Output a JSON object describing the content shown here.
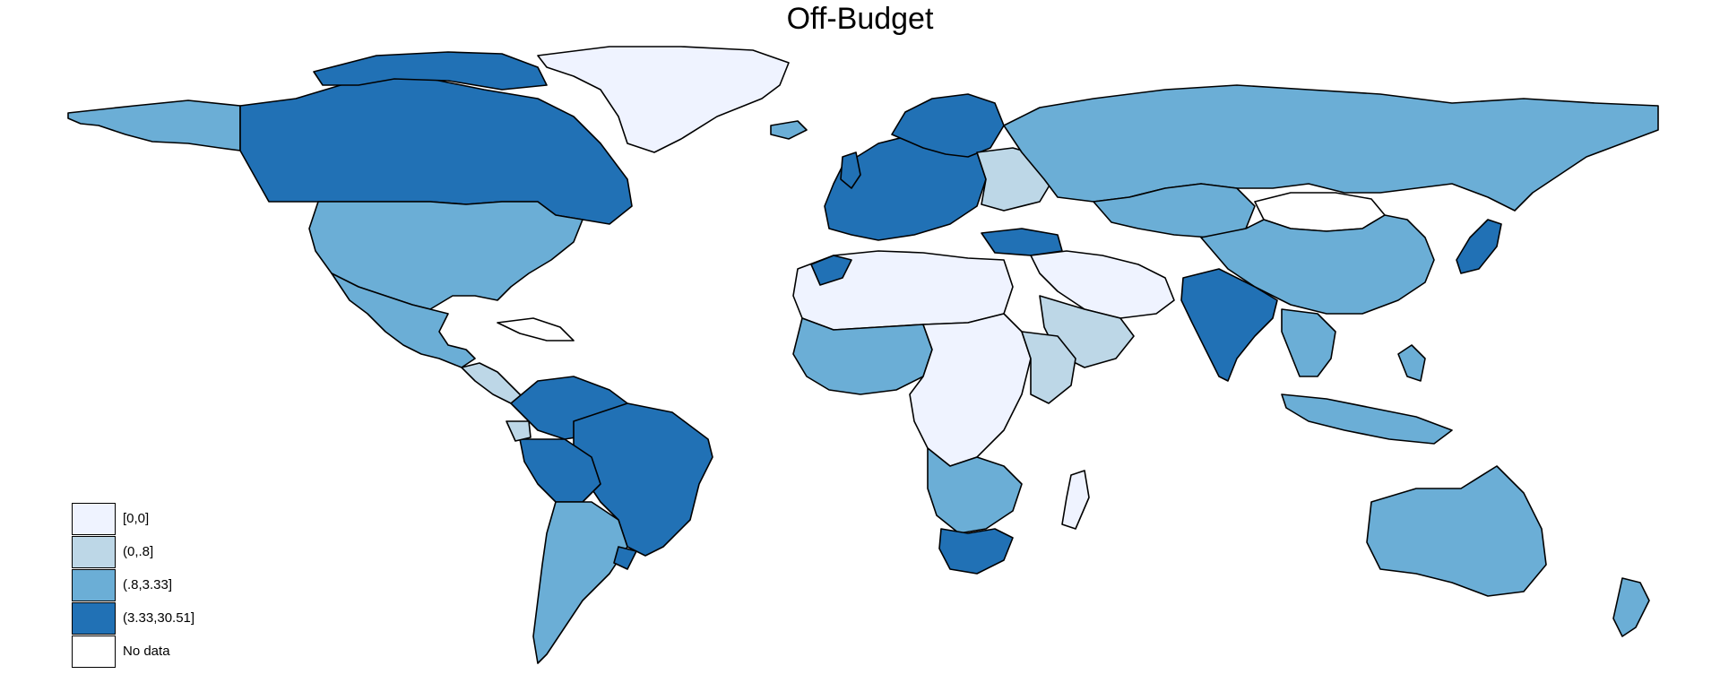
{
  "title": "Off-Budget",
  "legend": {
    "items": [
      {
        "label": "[0,0]",
        "color": "#eff3ff"
      },
      {
        "label": "(0,.8]",
        "color": "#bdd7e7"
      },
      {
        "label": "(.8,3.33]",
        "color": "#6baed6"
      },
      {
        "label": "(3.33,30.51]",
        "color": "#2171b5"
      },
      {
        "label": "No data",
        "color": "#ffffff"
      }
    ]
  },
  "colors": {
    "class_0": "#eff3ff",
    "class_1": "#bdd7e7",
    "class_2": "#6baed6",
    "class_3": "#2171b5",
    "no_data": "#ffffff",
    "border": "#000000"
  }
}
